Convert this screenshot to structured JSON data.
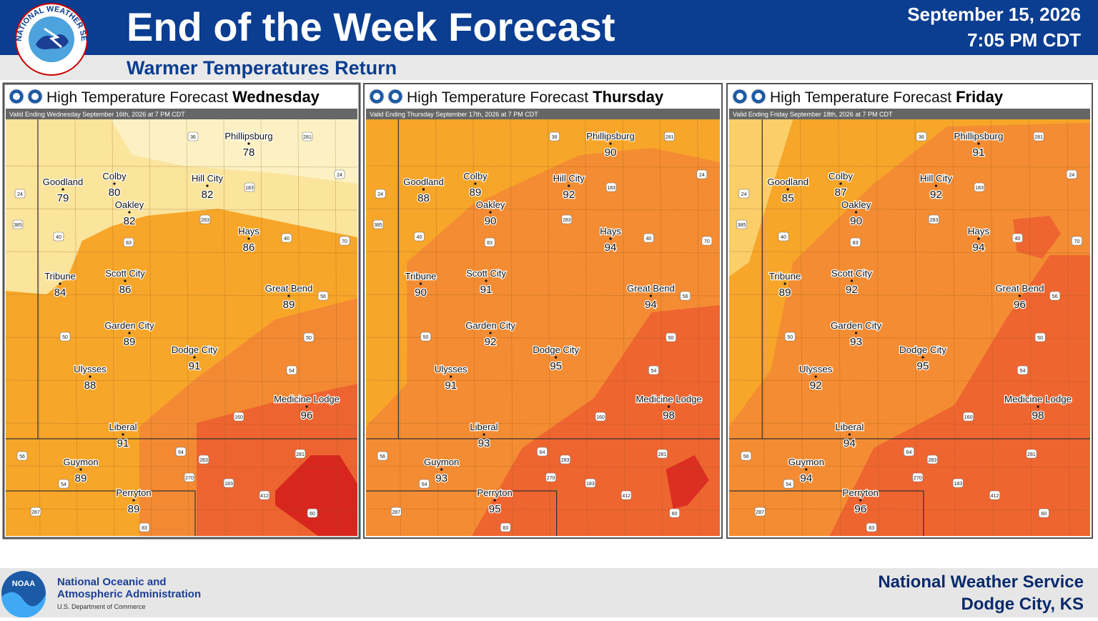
{
  "header": {
    "title": "End of the Week Forecast",
    "subtitle": "Warmer Temperatures Return",
    "date": "September 15, 2026",
    "time": "7:05 PM CDT"
  },
  "logos": {
    "nws": "NATIONAL WEATHER SERVICE",
    "noaa": "NOAA"
  },
  "cities": [
    "Phillipsburg",
    "Goodland",
    "Colby",
    "Oakley",
    "Hill City",
    "Hays",
    "Tribune",
    "Scott City",
    "Great Bend",
    "Garden City",
    "Dodge City",
    "Ulysses",
    "Medicine Lodge",
    "Liberal",
    "Guymon",
    "Perryton"
  ],
  "highways": [
    "36",
    "281",
    "24",
    "24",
    "183",
    "385",
    "40",
    "83",
    "283",
    "40",
    "70",
    "56",
    "50",
    "50",
    "54",
    "160",
    "56",
    "64",
    "283",
    "281",
    "270",
    "183",
    "54",
    "412",
    "60",
    "287",
    "83"
  ],
  "panels": [
    {
      "title": "High Temperature Forecast",
      "day": "Wednesday",
      "valid": "Valid Ending Wednesday September 16th, 2026 at 7 PM CDT",
      "temps": [
        78,
        79,
        80,
        82,
        82,
        86,
        84,
        86,
        89,
        89,
        91,
        88,
        96,
        91,
        89,
        89
      ]
    },
    {
      "title": "High Temperature Forecast",
      "day": "Thursday",
      "valid": "Valid Ending Thursday September 17th, 2026 at 7 PM CDT",
      "temps": [
        90,
        88,
        89,
        90,
        92,
        94,
        90,
        91,
        94,
        92,
        95,
        91,
        98,
        93,
        93,
        95
      ]
    },
    {
      "title": "High Temperature Forecast",
      "day": "Friday",
      "valid": "Valid Ending Friday September 18th, 2026 at 7 PM CDT",
      "temps": [
        91,
        85,
        87,
        90,
        92,
        94,
        89,
        92,
        96,
        93,
        95,
        92,
        98,
        94,
        94,
        96
      ]
    }
  ],
  "footer": {
    "agency_line1": "National Oceanic and",
    "agency_line2": "Atmospheric Administration",
    "department": "U.S. Department of Commerce",
    "office_line1": "National Weather Service",
    "office_line2": "Dodge City, KS"
  }
}
